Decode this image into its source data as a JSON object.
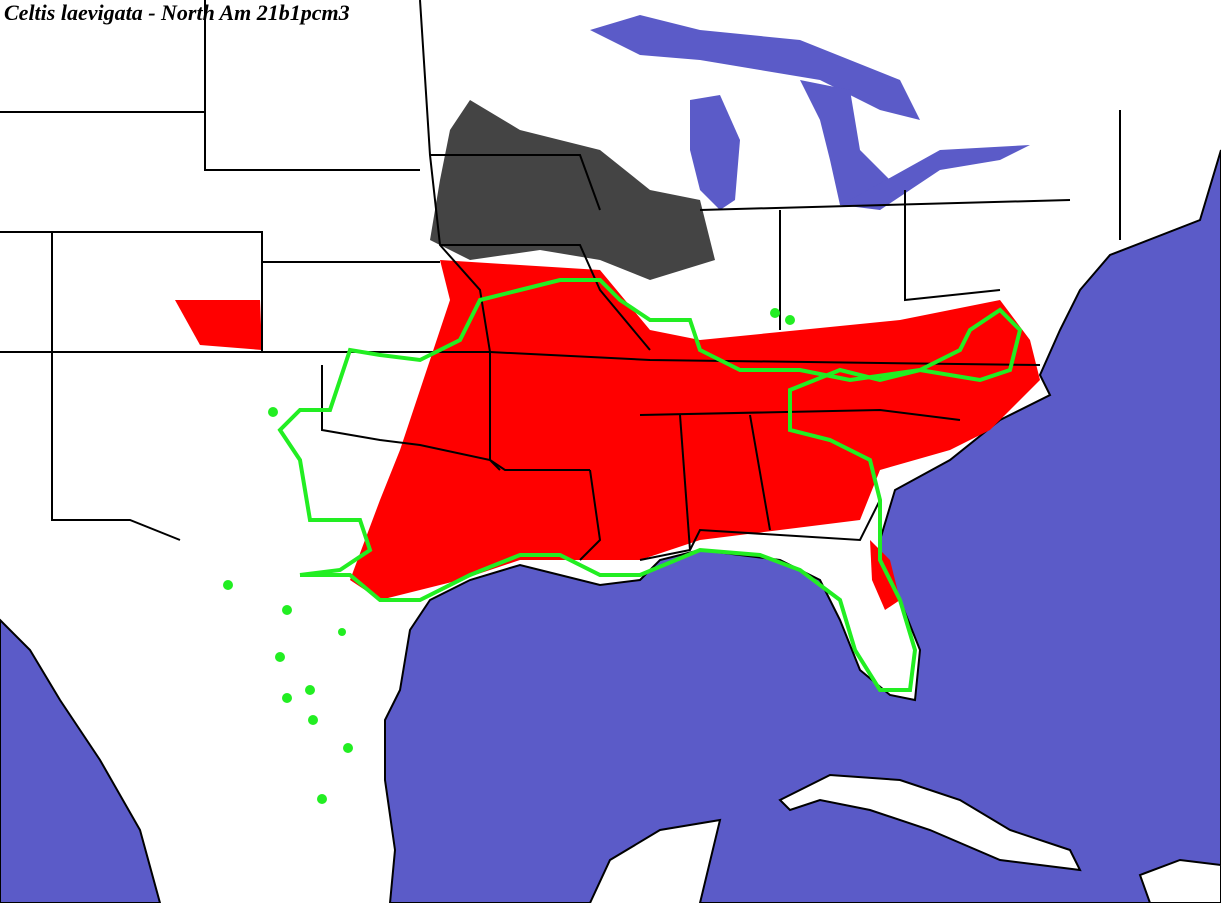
{
  "title": "Celtis laevigata - North Am 21b1pcm3"
}
